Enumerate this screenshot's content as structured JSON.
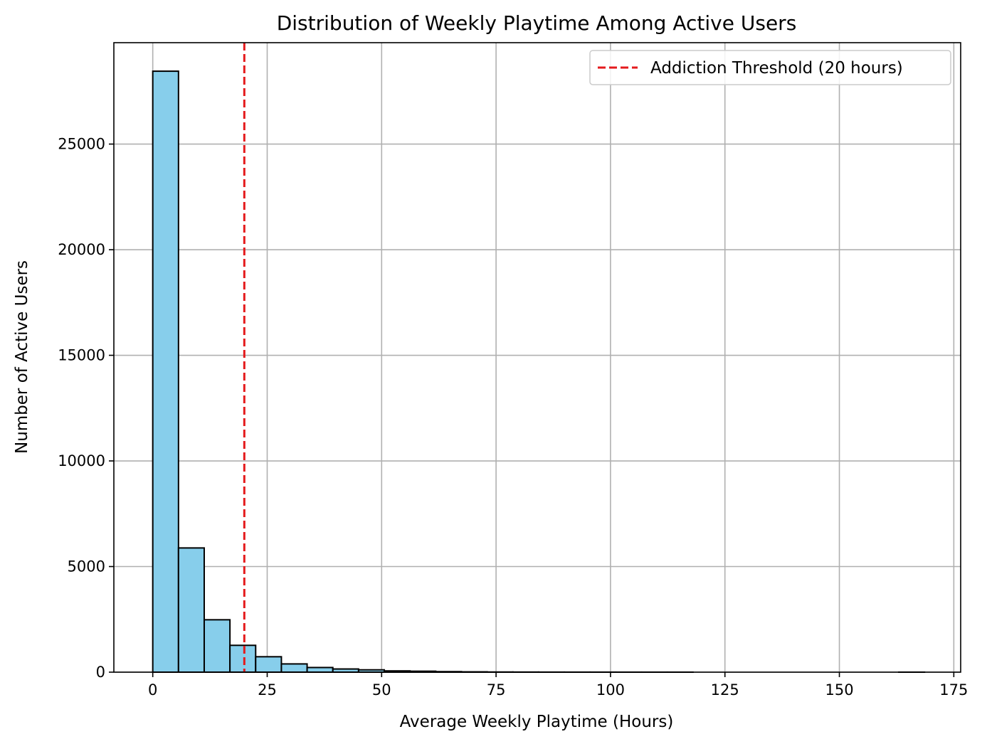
{
  "chart_data": {
    "type": "bar",
    "title": "Distribution of Weekly Playtime Among Active Users",
    "xlabel": "Average Weekly Playtime (Hours)",
    "ylabel": "Number of Active Users",
    "xlim": [
      -8.5,
      176.5
    ],
    "ylim": [
      0,
      29800
    ],
    "xticks": [
      0,
      25,
      50,
      75,
      100,
      125,
      150,
      175
    ],
    "yticks": [
      0,
      5000,
      10000,
      15000,
      20000,
      25000
    ],
    "grid": true,
    "legend_position": "top-right",
    "bin_width": 5.62,
    "bin_start": 0,
    "bins": [
      {
        "x0": 0.0,
        "x1": 5.62,
        "count": 28450
      },
      {
        "x0": 5.62,
        "x1": 11.24,
        "count": 5880
      },
      {
        "x0": 11.24,
        "x1": 16.86,
        "count": 2480
      },
      {
        "x0": 16.86,
        "x1": 22.48,
        "count": 1270
      },
      {
        "x0": 22.48,
        "x1": 28.1,
        "count": 730
      },
      {
        "x0": 28.1,
        "x1": 33.72,
        "count": 390
      },
      {
        "x0": 33.72,
        "x1": 39.34,
        "count": 220
      },
      {
        "x0": 39.34,
        "x1": 44.96,
        "count": 150
      },
      {
        "x0": 44.96,
        "x1": 50.58,
        "count": 110
      },
      {
        "x0": 50.58,
        "x1": 56.2,
        "count": 60
      },
      {
        "x0": 56.2,
        "x1": 61.82,
        "count": 45
      },
      {
        "x0": 61.82,
        "x1": 67.44,
        "count": 25
      },
      {
        "x0": 67.44,
        "x1": 73.06,
        "count": 15
      },
      {
        "x0": 73.06,
        "x1": 78.68,
        "count": 8
      },
      {
        "x0": 78.68,
        "x1": 84.3,
        "count": 5
      },
      {
        "x0": 84.3,
        "x1": 89.92,
        "count": 3
      },
      {
        "x0": 89.92,
        "x1": 95.54,
        "count": 2
      },
      {
        "x0": 95.54,
        "x1": 101.16,
        "count": 2
      },
      {
        "x0": 101.16,
        "x1": 106.78,
        "count": 1
      },
      {
        "x0": 106.78,
        "x1": 112.4,
        "count": 1
      },
      {
        "x0": 112.4,
        "x1": 118.02,
        "count": 1
      },
      {
        "x0": 118.02,
        "x1": 123.64,
        "count": 0
      },
      {
        "x0": 123.64,
        "x1": 129.26,
        "count": 0
      },
      {
        "x0": 129.26,
        "x1": 134.88,
        "count": 0
      },
      {
        "x0": 134.88,
        "x1": 140.5,
        "count": 0
      },
      {
        "x0": 140.5,
        "x1": 146.12,
        "count": 0
      },
      {
        "x0": 146.12,
        "x1": 151.74,
        "count": 0
      },
      {
        "x0": 151.74,
        "x1": 157.36,
        "count": 0
      },
      {
        "x0": 157.36,
        "x1": 162.98,
        "count": 0
      },
      {
        "x0": 162.98,
        "x1": 168.6,
        "count": 1
      }
    ],
    "threshold": {
      "x": 20,
      "label": "Addiction Threshold (20 hours)"
    },
    "colors": {
      "bar_fill": "#87CEEB",
      "bar_edge": "#000000",
      "threshold_line": "#E41A1C",
      "grid": "#B0B0B0"
    }
  }
}
